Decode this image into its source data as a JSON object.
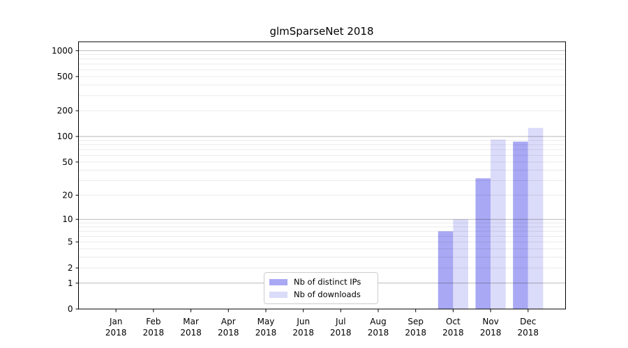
{
  "chart_data": {
    "type": "bar",
    "title": "glmSparseNet 2018",
    "x_months": [
      "Jan",
      "Feb",
      "Mar",
      "Apr",
      "May",
      "Jun",
      "Jul",
      "Aug",
      "Sep",
      "Oct",
      "Nov",
      "Dec"
    ],
    "x_year": "2018",
    "series": [
      {
        "name": "Nb of distinct IPs",
        "color": "#a8a8f4",
        "values": [
          0,
          0,
          0,
          0,
          0,
          0,
          0,
          0,
          0,
          7,
          32,
          87
        ]
      },
      {
        "name": "Nb of downloads",
        "color": "#dbdbfa",
        "values": [
          0,
          0,
          0,
          0,
          0,
          0,
          0,
          0,
          0,
          10,
          92,
          126
        ]
      }
    ],
    "y_scale": "log1p",
    "y_ticks": [
      0,
      1,
      2,
      5,
      10,
      20,
      50,
      100,
      200,
      500,
      1000
    ],
    "y_major_gridlines": [
      1,
      10,
      100,
      1000
    ],
    "ylim": [
      0,
      1200
    ],
    "grid": "on",
    "legend_position": "bottom-center",
    "axis_color": "#000000",
    "background": "#ffffff"
  }
}
